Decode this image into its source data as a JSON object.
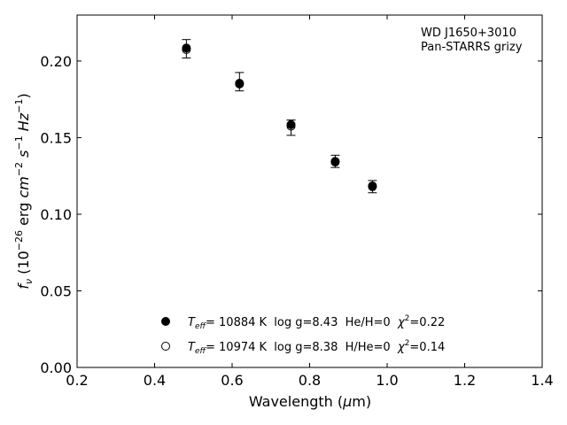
{
  "chart_data": {
    "type": "scatter",
    "title": "",
    "annotation_lines": [
      "WD J1650+3010",
      "Pan-STARRS grizy"
    ],
    "xlabel": "Wavelength (μm)",
    "ylabel": "f_ν (10^-26 erg cm^-2 s^-1 Hz^-1)",
    "xlim": [
      0.2,
      1.4
    ],
    "ylim": [
      0.0,
      0.23
    ],
    "xticks": [
      0.2,
      0.4,
      0.6,
      0.8,
      1.0,
      1.2,
      1.4
    ],
    "xtick_labels": [
      "0.2",
      "0.4",
      "0.6",
      "0.8",
      "1.0",
      "1.2",
      "1.4"
    ],
    "yticks": [
      0.0,
      0.05,
      0.1,
      0.15,
      0.2
    ],
    "ytick_labels": [
      "0.00",
      "0.05",
      "0.10",
      "0.15",
      "0.20"
    ],
    "grid": false,
    "legend_position": "lower-center",
    "observed": {
      "x": [
        0.482,
        0.619,
        0.752,
        0.866,
        0.962
      ],
      "y": [
        0.208,
        0.1865,
        0.1565,
        0.1345,
        0.118
      ],
      "err": [
        0.006,
        0.006,
        0.005,
        0.004,
        0.004
      ]
    },
    "series": [
      {
        "marker": "filled",
        "label_parts": {
          "teff_sym": "T",
          "teff_sub": "eff",
          "text": "= 10884 K  log g=8.43  He/H=0  ",
          "chi": "χ",
          "chi_sup": "2",
          "chi_val": "=0.22"
        },
        "x": [
          0.482,
          0.619,
          0.752,
          0.866,
          0.962
        ],
        "y": [
          0.2085,
          0.185,
          0.1585,
          0.1345,
          0.1185
        ]
      },
      {
        "marker": "open",
        "label_parts": {
          "teff_sym": "T",
          "teff_sub": "eff",
          "text": "= 10974 K  log g=8.38  H/He=0  ",
          "chi": "χ",
          "chi_sup": "2",
          "chi_val": "=0.14"
        },
        "x": [
          0.482,
          0.619,
          0.752,
          0.866,
          0.962
        ],
        "y": [
          0.2075,
          0.1855,
          0.1575,
          0.134,
          0.118
        ]
      }
    ]
  }
}
